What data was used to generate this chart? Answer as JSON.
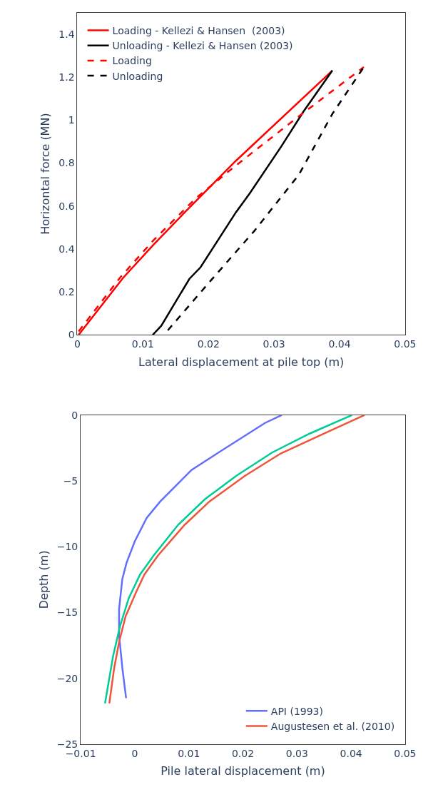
{
  "chart_data": [
    {
      "type": "line",
      "xlabel": "Lateral displacement at pile top (m)",
      "ylabel": "Horizontal force (MN)",
      "xlim": [
        0,
        0.05
      ],
      "xticks": [
        0,
        0.01,
        0.02,
        0.03,
        0.04,
        0.05
      ],
      "ylim": [
        0,
        1.5
      ],
      "yticks": [
        0,
        0.2,
        0.4,
        0.6,
        0.8,
        1,
        1.2,
        1.4
      ],
      "legend": "top left",
      "series": [
        {
          "name": "Loading - Kellezi & Hansen  (2003)",
          "color": "#ff0000",
          "line_style": "solid",
          "x": [
            0.0002,
            0.007,
            0.0116,
            0.0164,
            0.0242,
            0.0389
          ],
          "values": [
            0,
            0.266,
            0.419,
            0.571,
            0.811,
            1.231
          ]
        },
        {
          "name": "Unloading - Kellezi & Hansen (2003)",
          "color": "#000000",
          "line_style": "solid",
          "x": [
            0.0115,
            0.0128,
            0.0171,
            0.0188,
            0.0242,
            0.0263,
            0.0311,
            0.0345,
            0.0389
          ],
          "values": [
            0,
            0.042,
            0.261,
            0.315,
            0.571,
            0.659,
            0.877,
            1.04,
            1.231
          ]
        },
        {
          "name": "Loading",
          "color": "#ff0000",
          "line_style": "dashed",
          "x": [
            0.0002,
            0.0065,
            0.0116,
            0.0181,
            0.0242,
            0.0338,
            0.0437
          ],
          "values": [
            0.016,
            0.266,
            0.44,
            0.637,
            0.789,
            1.018,
            1.247
          ]
        },
        {
          "name": "Unloading",
          "color": "#000000",
          "line_style": "dashed",
          "x": [
            0.0138,
            0.0201,
            0.027,
            0.0338,
            0.0389,
            0.0437
          ],
          "values": [
            0.021,
            0.244,
            0.484,
            0.746,
            1.029,
            1.247
          ]
        }
      ]
    },
    {
      "type": "line",
      "xlabel": "Pile lateral displacement (m)",
      "ylabel": "Depth (m)",
      "xlim": [
        -0.01,
        0.05
      ],
      "xticks": [
        -0.01,
        0,
        0.01,
        0.02,
        0.03,
        0.04,
        0.05
      ],
      "ylim": [
        -25,
        0
      ],
      "yticks": [
        -25,
        -20,
        -15,
        -10,
        -5,
        0
      ],
      "legend": "bottom right",
      "series": [
        {
          "name": "API (1993)",
          "color": "#636efa",
          "x": [
            0.0272,
            0.0241,
            0.0159,
            0.0105,
            0.0047,
            0.0022,
            0.0,
            -0.0015,
            -0.0023,
            -0.0029,
            -0.0029,
            -0.0023,
            -0.0016
          ],
          "values": [
            0,
            -0.6,
            -2.74,
            -4.17,
            -6.57,
            -7.82,
            -9.6,
            -11.2,
            -12.45,
            -14.76,
            -16.7,
            -19.2,
            -21.5
          ]
        },
        {
          "name": "Augustesen et al. (2010)",
          "color": "#ef553b",
          "x": [
            0.0425,
            0.0345,
            0.027,
            0.0204,
            0.0138,
            0.0092,
            0.0043,
            0.0018,
            0.0002,
            -0.0017,
            -0.0029,
            -0.0038,
            -0.0047
          ],
          "values": [
            0,
            -1.5,
            -2.92,
            -4.61,
            -6.57,
            -8.35,
            -10.67,
            -12.1,
            -13.5,
            -15.3,
            -17.25,
            -19.2,
            -21.9
          ]
        },
        {
          "color": "#00cc96",
          "x": [
            0.0402,
            0.0324,
            0.0254,
            0.0188,
            0.013,
            0.008,
            0.0035,
            0.001,
            -0.0011,
            -0.0027,
            -0.004,
            -0.0055
          ],
          "values": [
            0,
            -1.4,
            -2.85,
            -4.61,
            -6.39,
            -8.35,
            -10.67,
            -12.1,
            -13.9,
            -16.0,
            -18.3,
            -21.9
          ]
        }
      ]
    }
  ]
}
